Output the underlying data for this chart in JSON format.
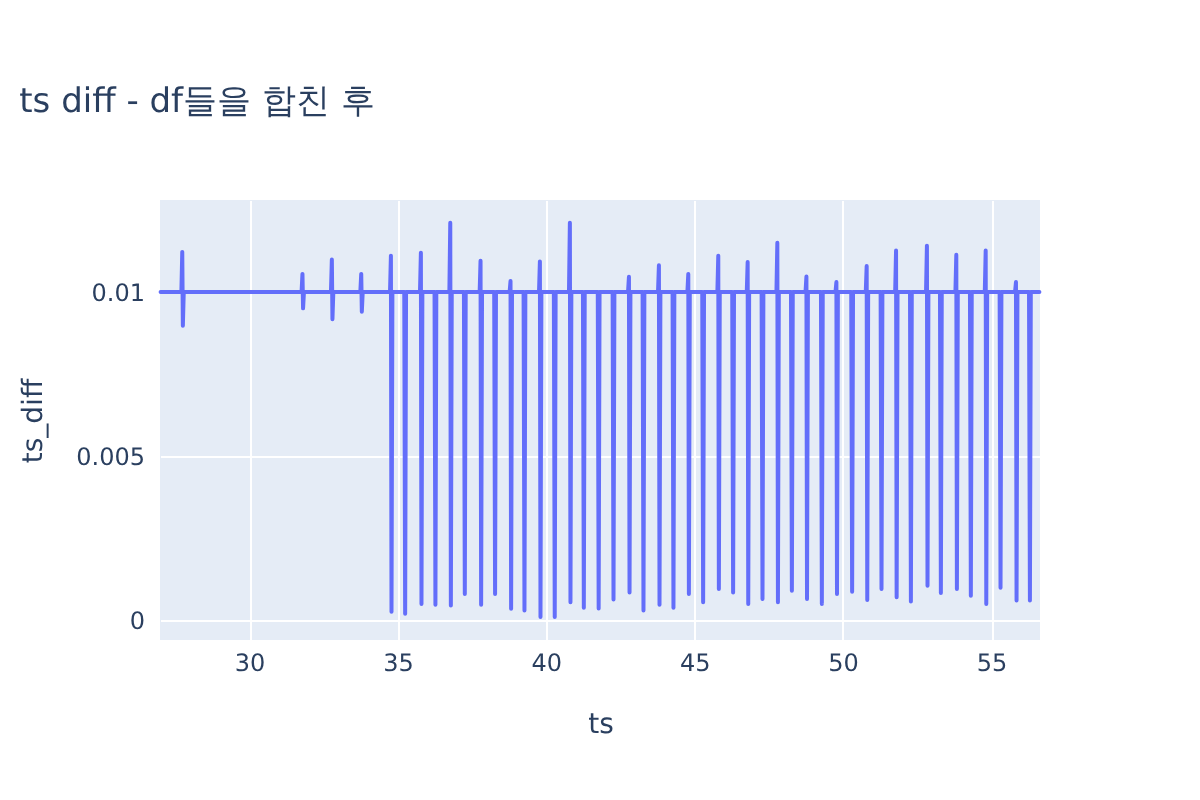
{
  "chart_data": {
    "type": "line",
    "title": "ts diff - df들을 합친 후",
    "xlabel": "ts",
    "ylabel": "ts_diff",
    "xlim": [
      27.0,
      56.65
    ],
    "xticks": [
      30,
      35,
      40,
      45,
      50,
      55
    ],
    "ylim": [
      -0.0006,
      0.0128
    ],
    "yticks": [
      0,
      0.005,
      0.01
    ],
    "grid": true,
    "marker": "none",
    "line_style": "solid",
    "series": [
      {
        "color": "#636efa",
        "x": [
          27.02,
          27.72,
          27.75,
          27.77,
          27.8,
          31.77,
          31.8,
          31.82,
          31.85,
          32.76,
          32.79,
          32.81,
          32.84,
          33.75,
          33.78,
          33.8,
          33.83,
          34.75,
          34.78,
          34.8,
          34.83,
          35.23,
          35.26,
          35.29,
          35.76,
          35.79,
          35.81,
          35.84,
          36.25,
          36.28,
          36.31,
          36.75,
          36.78,
          36.8,
          36.83,
          37.24,
          37.27,
          37.3,
          37.77,
          37.8,
          37.82,
          37.85,
          38.26,
          38.29,
          38.32,
          38.78,
          38.81,
          38.83,
          38.86,
          39.25,
          39.28,
          39.31,
          39.77,
          39.8,
          39.82,
          39.85,
          40.27,
          40.3,
          40.33,
          40.78,
          40.81,
          40.83,
          40.86,
          41.25,
          41.28,
          41.31,
          41.75,
          41.78,
          41.81,
          42.25,
          42.28,
          42.31,
          42.77,
          42.8,
          42.82,
          42.85,
          43.26,
          43.29,
          43.32,
          43.78,
          43.81,
          43.83,
          43.86,
          44.27,
          44.3,
          44.33,
          44.77,
          44.8,
          44.82,
          44.85,
          45.27,
          45.3,
          45.33,
          45.78,
          45.81,
          45.83,
          45.86,
          46.28,
          46.31,
          46.34,
          46.77,
          46.8,
          46.82,
          46.85,
          47.27,
          47.3,
          47.33,
          47.77,
          47.8,
          47.82,
          47.85,
          48.26,
          48.29,
          48.32,
          48.75,
          48.78,
          48.8,
          48.83,
          49.27,
          49.3,
          49.33,
          49.76,
          49.79,
          49.81,
          49.84,
          50.29,
          50.32,
          50.35,
          50.78,
          50.81,
          50.83,
          50.86,
          51.28,
          51.31,
          51.34,
          51.77,
          51.8,
          51.82,
          51.85,
          52.27,
          52.3,
          52.33,
          52.81,
          52.84,
          52.86,
          52.89,
          53.28,
          53.31,
          53.34,
          53.8,
          53.83,
          53.85,
          53.88,
          54.29,
          54.32,
          54.35,
          54.79,
          54.82,
          54.84,
          54.87,
          55.29,
          55.32,
          55.35,
          55.81,
          55.84,
          55.86,
          55.89,
          56.28,
          56.31,
          56.34,
          56.63
        ],
        "values": [
          0.01,
          0.01,
          0.01122,
          0.00897,
          0.01,
          0.01,
          0.01055,
          0.0095,
          0.01,
          0.01,
          0.01099,
          0.00917,
          0.01,
          0.01,
          0.01055,
          0.0094,
          0.01,
          0.01,
          0.0111,
          0.00026,
          0.01,
          0.01,
          0.0002,
          0.01,
          0.01,
          0.01119,
          0.0005,
          0.01,
          0.01,
          0.00047,
          0.01,
          0.01,
          0.01211,
          0.00045,
          0.01,
          0.01,
          0.0008,
          0.01,
          0.01,
          0.01095,
          0.00047,
          0.01,
          0.01,
          0.0008,
          0.01,
          0.01,
          0.01033,
          0.00035,
          0.01,
          0.01,
          0.0003,
          0.01,
          0.01,
          0.01093,
          0.0001,
          0.01,
          0.01,
          0.0001,
          0.01,
          0.01,
          0.01211,
          0.00055,
          0.01,
          0.01,
          0.00038,
          0.01,
          0.01,
          0.00036,
          0.01,
          0.01,
          0.00063,
          0.01,
          0.01,
          0.01046,
          0.00085,
          0.01,
          0.01,
          0.0003,
          0.01,
          0.01,
          0.01081,
          0.00047,
          0.01,
          0.01,
          0.00038,
          0.01,
          0.01,
          0.01055,
          0.0008,
          0.01,
          0.01,
          0.00055,
          0.01,
          0.01,
          0.0111,
          0.00095,
          0.01,
          0.01,
          0.00085,
          0.01,
          0.01,
          0.01091,
          0.0005,
          0.01,
          0.01,
          0.00065,
          0.01,
          0.01,
          0.0115,
          0.00055,
          0.01,
          0.01,
          0.0009,
          0.01,
          0.01,
          0.01047,
          0.00065,
          0.01,
          0.01,
          0.0005,
          0.01,
          0.01,
          0.0103,
          0.0008,
          0.01,
          0.01,
          0.00087,
          0.01,
          0.01,
          0.01079,
          0.00062,
          0.01,
          0.01,
          0.00095,
          0.01,
          0.01,
          0.01126,
          0.0007,
          0.01,
          0.01,
          0.00057,
          0.01,
          0.01,
          0.01141,
          0.00105,
          0.01,
          0.01,
          0.00083,
          0.01,
          0.01,
          0.01113,
          0.00095,
          0.01,
          0.01,
          0.00075,
          0.01,
          0.01,
          0.01126,
          0.0005,
          0.01,
          0.01,
          0.00099,
          0.01,
          0.01,
          0.0103,
          0.0006,
          0.01,
          0.01,
          0.0006,
          0.01,
          0.01
        ]
      }
    ]
  }
}
